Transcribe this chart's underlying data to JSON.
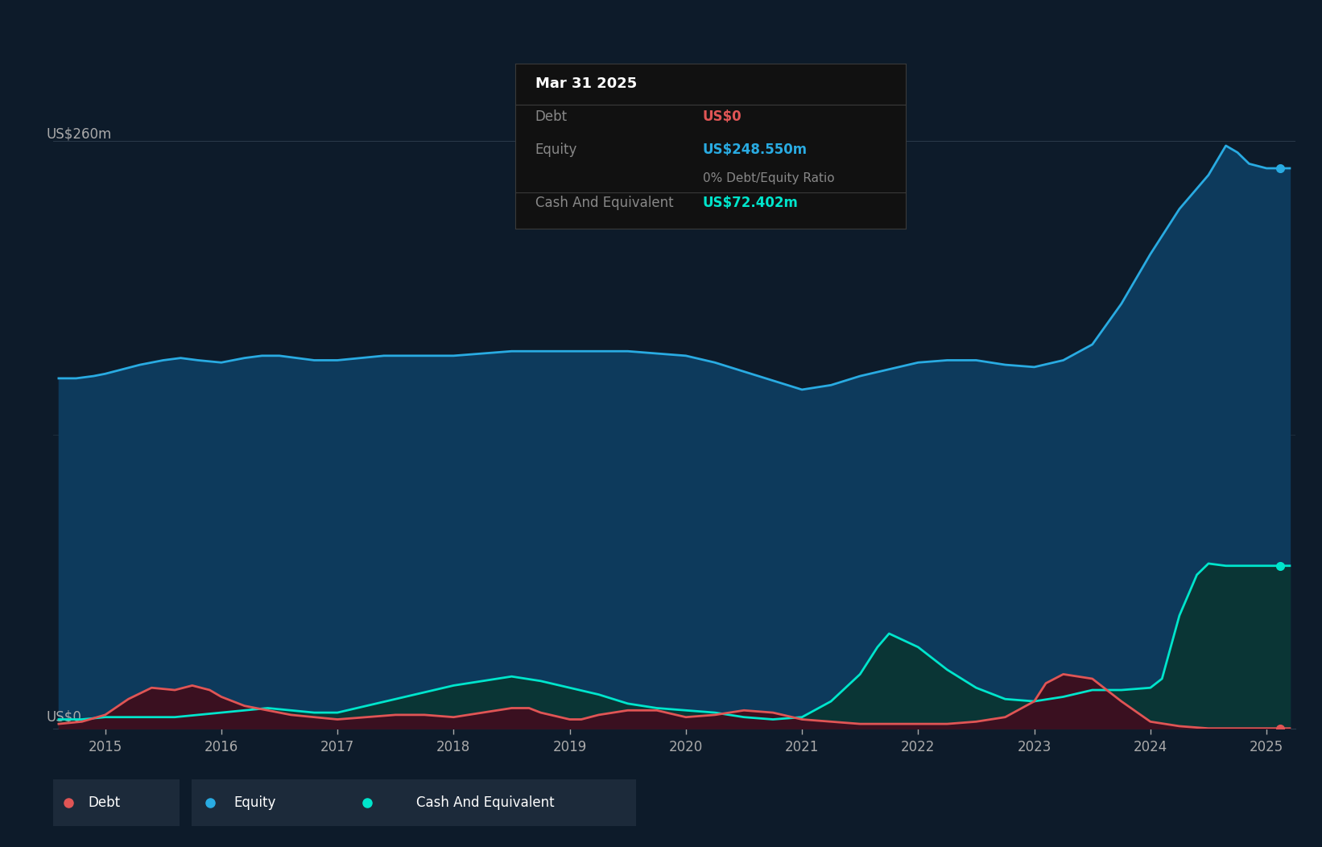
{
  "background_color": "#0d1b2a",
  "chart_bg_color": "#0d1b2a",
  "equity_color": "#29abe2",
  "equity_fill_color": "#0d3a5c",
  "debt_color": "#e05555",
  "debt_fill_color": "#3a1020",
  "cash_color": "#00e5cc",
  "cash_fill_color": "#0a3535",
  "grid_color": "#2a3a4a",
  "ylabel_top": "US$260m",
  "ylabel_bottom": "US$0",
  "x_ticks": [
    2015,
    2016,
    2017,
    2018,
    2019,
    2020,
    2021,
    2022,
    2023,
    2024,
    2025
  ],
  "tooltip_bg": "#111111",
  "tooltip_date": "Mar 31 2025",
  "tooltip_debt_label": "Debt",
  "tooltip_debt_value": "US$0",
  "tooltip_debt_value_color": "#e05555",
  "tooltip_equity_label": "Equity",
  "tooltip_equity_value": "US$248.550m",
  "tooltip_equity_value_color": "#29abe2",
  "tooltip_ratio": "0% Debt/Equity Ratio",
  "tooltip_cash_label": "Cash And Equivalent",
  "tooltip_cash_value": "US$72.402m",
  "tooltip_cash_value_color": "#00e5cc",
  "equity_x": [
    2014.6,
    2014.75,
    2014.9,
    2015.0,
    2015.15,
    2015.3,
    2015.5,
    2015.65,
    2015.8,
    2016.0,
    2016.2,
    2016.35,
    2016.5,
    2016.65,
    2016.8,
    2017.0,
    2017.2,
    2017.4,
    2017.6,
    2017.8,
    2018.0,
    2018.25,
    2018.5,
    2018.75,
    2019.0,
    2019.25,
    2019.5,
    2019.75,
    2020.0,
    2020.25,
    2020.5,
    2020.75,
    2021.0,
    2021.25,
    2021.5,
    2021.75,
    2022.0,
    2022.25,
    2022.5,
    2022.75,
    2023.0,
    2023.25,
    2023.5,
    2023.75,
    2024.0,
    2024.25,
    2024.5,
    2024.65,
    2024.75,
    2024.85,
    2025.0,
    2025.1,
    2025.2
  ],
  "equity_y": [
    155,
    155,
    156,
    157,
    159,
    161,
    163,
    164,
    163,
    162,
    164,
    165,
    165,
    164,
    163,
    163,
    164,
    165,
    165,
    165,
    165,
    166,
    167,
    167,
    167,
    167,
    167,
    166,
    165,
    162,
    158,
    154,
    150,
    152,
    156,
    159,
    162,
    163,
    163,
    161,
    160,
    163,
    170,
    188,
    210,
    230,
    245,
    258,
    255,
    250,
    248,
    248,
    248
  ],
  "debt_x": [
    2014.6,
    2014.8,
    2015.0,
    2015.2,
    2015.4,
    2015.6,
    2015.75,
    2015.9,
    2016.0,
    2016.2,
    2016.4,
    2016.6,
    2016.8,
    2017.0,
    2017.25,
    2017.5,
    2017.75,
    2018.0,
    2018.25,
    2018.5,
    2018.65,
    2018.75,
    2019.0,
    2019.1,
    2019.25,
    2019.5,
    2019.75,
    2020.0,
    2020.25,
    2020.5,
    2020.75,
    2021.0,
    2021.25,
    2021.5,
    2021.75,
    2022.0,
    2022.25,
    2022.5,
    2022.75,
    2023.0,
    2023.1,
    2023.25,
    2023.5,
    2023.75,
    2024.0,
    2024.25,
    2024.5,
    2024.75,
    2025.0,
    2025.2
  ],
  "debt_y": [
    2,
    3,
    6,
    13,
    18,
    17,
    19,
    17,
    14,
    10,
    8,
    6,
    5,
    4,
    5,
    6,
    6,
    5,
    7,
    9,
    9,
    7,
    4,
    4,
    6,
    8,
    8,
    5,
    6,
    8,
    7,
    4,
    3,
    2,
    2,
    2,
    2,
    3,
    5,
    12,
    20,
    24,
    22,
    12,
    3,
    1,
    0,
    0,
    0,
    0
  ],
  "cash_x": [
    2014.6,
    2014.8,
    2015.0,
    2015.2,
    2015.4,
    2015.6,
    2015.8,
    2016.0,
    2016.2,
    2016.4,
    2016.6,
    2016.8,
    2017.0,
    2017.25,
    2017.5,
    2017.75,
    2018.0,
    2018.25,
    2018.5,
    2018.75,
    2019.0,
    2019.25,
    2019.5,
    2019.75,
    2020.0,
    2020.25,
    2020.5,
    2020.75,
    2021.0,
    2021.25,
    2021.5,
    2021.65,
    2021.75,
    2022.0,
    2022.25,
    2022.5,
    2022.75,
    2023.0,
    2023.25,
    2023.5,
    2023.75,
    2024.0,
    2024.1,
    2024.25,
    2024.4,
    2024.5,
    2024.65,
    2024.75,
    2025.0,
    2025.1,
    2025.2
  ],
  "cash_y": [
    4,
    4,
    5,
    5,
    5,
    5,
    6,
    7,
    8,
    9,
    8,
    7,
    7,
    10,
    13,
    16,
    19,
    21,
    23,
    21,
    18,
    15,
    11,
    9,
    8,
    7,
    5,
    4,
    5,
    12,
    24,
    36,
    42,
    36,
    26,
    18,
    13,
    12,
    14,
    17,
    17,
    18,
    22,
    50,
    68,
    73,
    72,
    72,
    72,
    72,
    72
  ],
  "ylim": [
    0,
    270
  ],
  "xlim": [
    2014.55,
    2025.25
  ],
  "dot_x_equity": 2025.12,
  "dot_x_cash": 2025.12,
  "dot_x_debt": 2025.12,
  "equity_dot_y": 248,
  "cash_dot_y": 72,
  "debt_dot_y": 0
}
